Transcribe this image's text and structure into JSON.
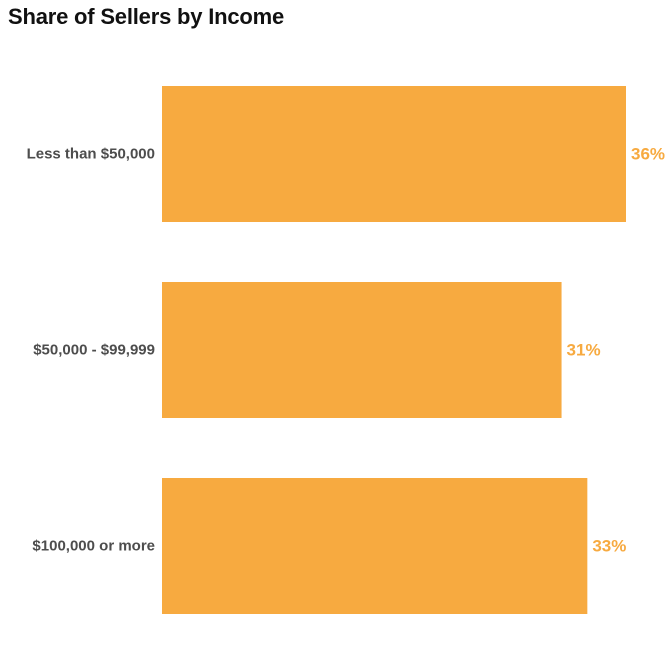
{
  "chart_data": {
    "type": "bar",
    "orientation": "horizontal",
    "title": "Share of Sellers by Income",
    "xlabel": "",
    "ylabel": "",
    "categories": [
      "Less than $50,000",
      "$50,000 - $99,999",
      "$100,000 or more"
    ],
    "values": [
      36,
      31,
      33
    ],
    "value_labels": [
      "36%",
      "31%",
      "33%"
    ],
    "unit": "%",
    "xlim": [
      0,
      36
    ],
    "grid": false,
    "legend": "none",
    "colors": {
      "bar": "#F7AA40",
      "value_label": "#F7AA40",
      "category_label": "#4D4D4D",
      "title": "#111111"
    }
  }
}
